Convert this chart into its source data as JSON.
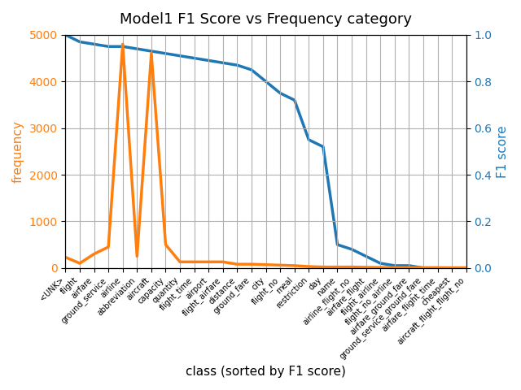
{
  "title": "Model1 F1 Score vs Frequency category",
  "xlabel": "class (sorted by F1 score)",
  "ylabel_left": "frequency",
  "ylabel_right": "F1 score",
  "categories": [
    "<UNK>",
    "flight",
    "airfare",
    "ground_service",
    "airline",
    "abbreviation",
    "aircraft",
    "capacity",
    "quantity",
    "flight_time",
    "airport",
    "flight_airfare",
    "distance",
    "ground_fare",
    "city",
    "flight_no",
    "meal",
    "restriction",
    "day",
    "name",
    "airline_flight_no",
    "airfare_flight",
    "flight_airline",
    "flight_no_airline",
    "airfare_ground_fare",
    "ground_service_ground_fare",
    "airfare_flight_time",
    "cheapest",
    "aircraft_flight_flight_no"
  ],
  "frequency": [
    230,
    100,
    300,
    450,
    4800,
    250,
    4600,
    500,
    130,
    130,
    130,
    130,
    80,
    80,
    70,
    60,
    50,
    30,
    20,
    20,
    20,
    15,
    10,
    10,
    10,
    8,
    8,
    5,
    5
  ],
  "f1_score": [
    1.0,
    0.97,
    0.96,
    0.95,
    0.95,
    0.94,
    0.93,
    0.92,
    0.91,
    0.9,
    0.89,
    0.88,
    0.87,
    0.85,
    0.8,
    0.75,
    0.72,
    0.55,
    0.52,
    0.1,
    0.08,
    0.05,
    0.02,
    0.01,
    0.01,
    0.0,
    0.0,
    0.0,
    0.0
  ],
  "freq_color": "#ff7f0e",
  "f1_color": "#1f77b4",
  "background_color": "#ffffff",
  "grid_color": "#b0b0b0",
  "figsize": [
    6.4,
    4.8
  ],
  "dpi": 100,
  "title_fontsize": 13,
  "label_fontsize": 11,
  "tick_fontsize": 7,
  "linewidth": 2.5,
  "ylim_freq_max": 5000,
  "ylim_f1_max": 1.0
}
